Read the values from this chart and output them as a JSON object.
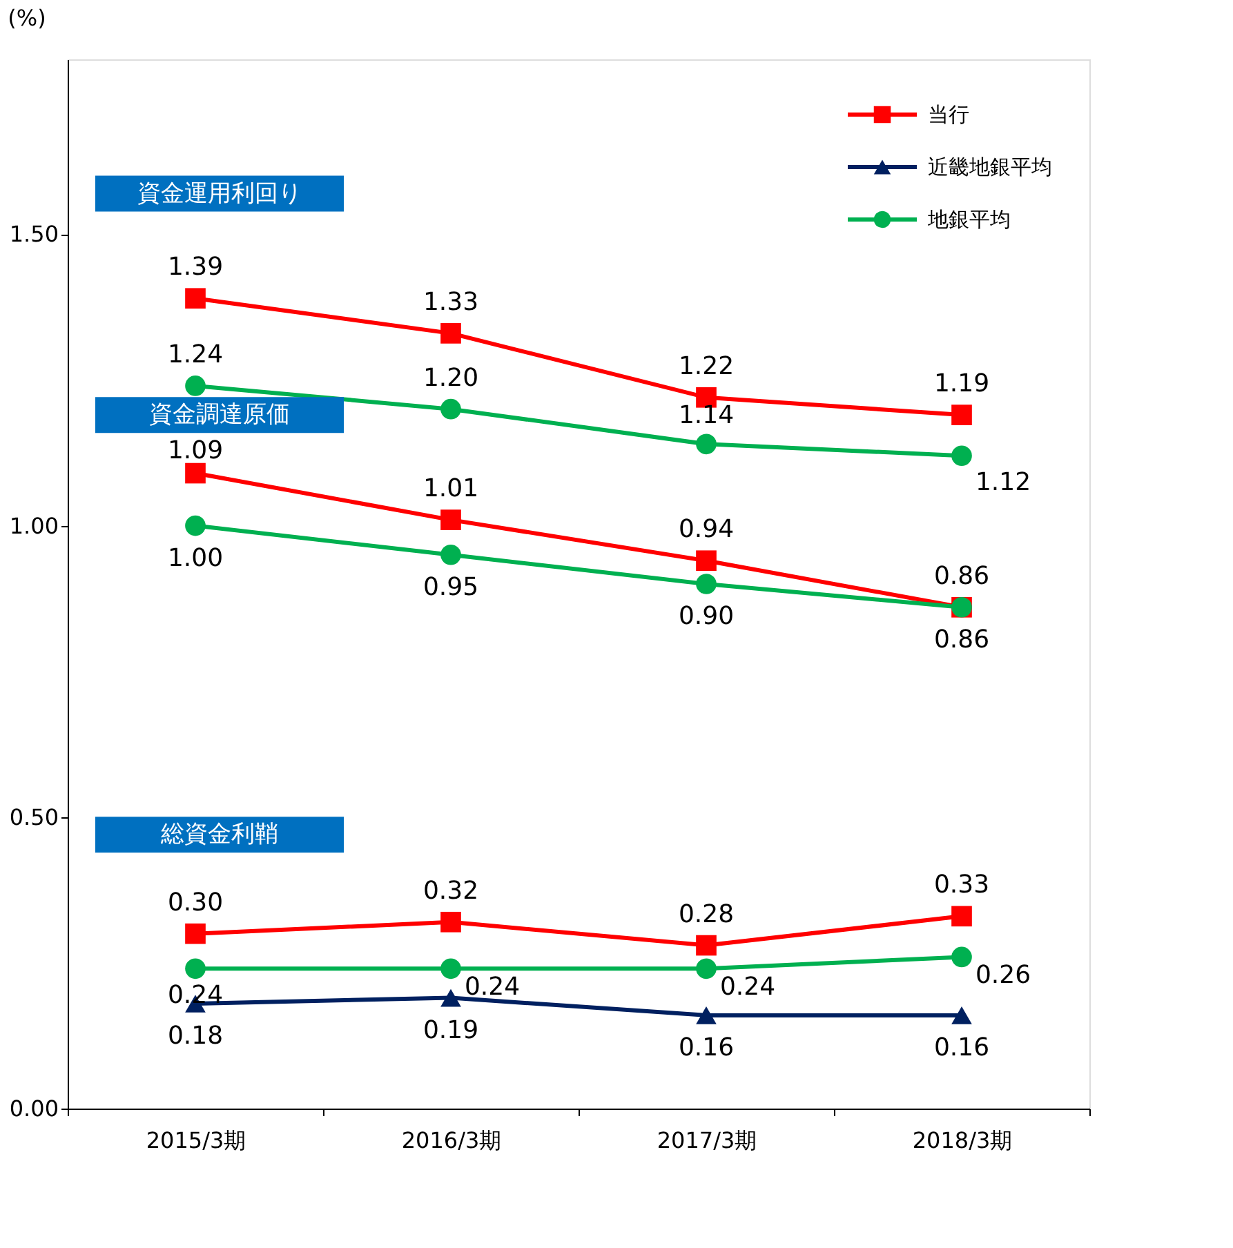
{
  "chart_data": {
    "type": "line",
    "ylabel": "(%)",
    "categories": [
      "2015/3期",
      "2016/3期",
      "2017/3期",
      "2018/3期"
    ],
    "series": [
      {
        "name": "当行",
        "color": "#ff0000",
        "marker": "square",
        "values": [
          1.39,
          1.33,
          1.22,
          1.19
        ],
        "value_labels": [
          "1.39",
          "1.33",
          "1.22",
          "1.19"
        ]
      },
      {
        "color": "#ff0000",
        "marker": "square",
        "values": [
          1.09,
          1.01,
          0.94,
          0.86
        ],
        "value_labels": [
          "1.09",
          "1.01",
          "0.94",
          "0.86"
        ]
      },
      {
        "color": "#ff0000",
        "marker": "square",
        "values": [
          0.3,
          0.32,
          0.28,
          0.33
        ],
        "value_labels": [
          "0.30",
          "0.32",
          "0.28",
          "0.33"
        ]
      },
      {
        "name": "近畿地銀平均",
        "color": "#002060",
        "marker": "triangle",
        "values": [
          0.18,
          0.19,
          0.16,
          0.16
        ],
        "value_labels": [
          "0.18",
          "0.19",
          "0.16",
          "0.16"
        ]
      },
      {
        "name": "地銀平均",
        "color": "#00b050",
        "marker": "circle",
        "values": [
          1.24,
          1.2,
          1.14,
          1.12
        ],
        "value_labels": [
          "1.24",
          "1.20",
          "1.14",
          "1.12"
        ]
      },
      {
        "color": "#00b050",
        "marker": "circle",
        "values": [
          1.0,
          0.95,
          0.9,
          0.86
        ],
        "value_labels": [
          "1.00",
          "0.95",
          "0.90",
          "0.86"
        ]
      },
      {
        "color": "#00b050",
        "marker": "circle",
        "values": [
          0.24,
          0.24,
          0.24,
          0.26
        ],
        "value_labels": [
          "0.24",
          "0.24",
          "0.24",
          "0.26"
        ]
      }
    ],
    "ylim": [
      0,
      1.8
    ],
    "yticks": [
      {
        "value": 0,
        "label": "0.00"
      },
      {
        "value": 0.5,
        "label": "0.50"
      },
      {
        "value": 1.0,
        "label": "1.00"
      },
      {
        "value": 1.5,
        "label": "1.50"
      }
    ],
    "annotations": [
      "資金運用利回り",
      "資金調達原価",
      "総資金利鞘"
    ],
    "grid": false,
    "legend": "top right",
    "line_style": "solid"
  }
}
